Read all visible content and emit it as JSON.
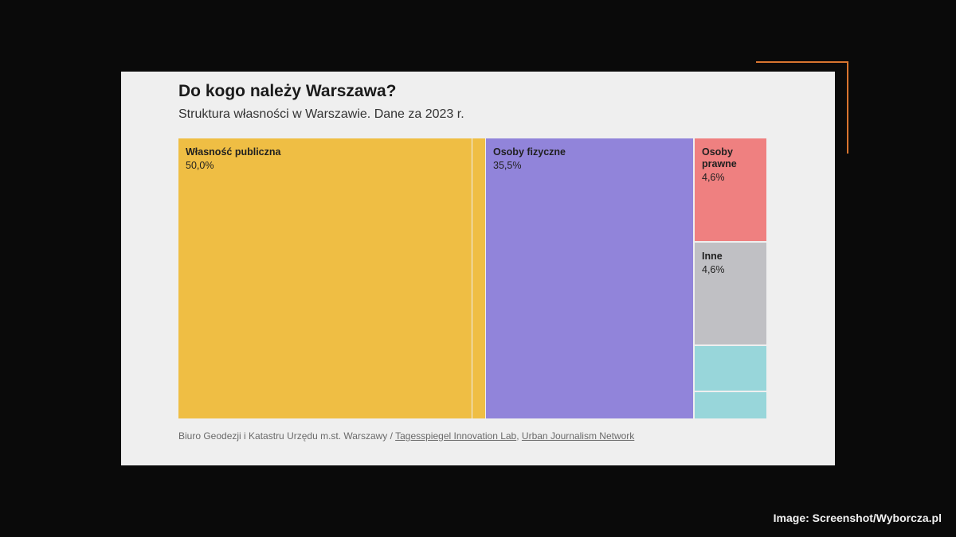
{
  "header": {
    "title": "Do kogo należy Warszawa?",
    "subtitle": "Struktura własności w Warszawie. Dane za 2023 r."
  },
  "chart_data": {
    "type": "treemap",
    "title": "Do kogo należy Warszawa?",
    "subtitle": "Struktura własności w Warszawie. Dane za 2023 r.",
    "unit": "%",
    "items": [
      {
        "label": "Własność publiczna",
        "value": 50.0,
        "value_label": "50,0%",
        "color": "#efbe44"
      },
      {
        "label": "",
        "value": 2.0,
        "value_label": "",
        "color": "#efbe44"
      },
      {
        "label": "Osoby fizyczne",
        "value": 35.5,
        "value_label": "35,5%",
        "color": "#9184da"
      },
      {
        "label": "Osoby prawne",
        "value": 4.6,
        "value_label": "4,6%",
        "color": "#ef8080"
      },
      {
        "label": "Inne",
        "value": 4.6,
        "value_label": "4,6%",
        "color": "#c0c0c4"
      },
      {
        "label": "",
        "value": 2.1,
        "value_label": "",
        "color": "#98d6da"
      },
      {
        "label": "",
        "value": 1.2,
        "value_label": "",
        "color": "#98d6da"
      }
    ]
  },
  "source": {
    "prefix": "Biuro Geodezji i Katastru Urzędu m.st. Warszawy /",
    "link1": "Tagesspiegel Innovation Lab",
    "separator": ",",
    "link2": "Urban Journalism Network"
  },
  "credit": "Image: Screenshot/Wyborcza.pl"
}
